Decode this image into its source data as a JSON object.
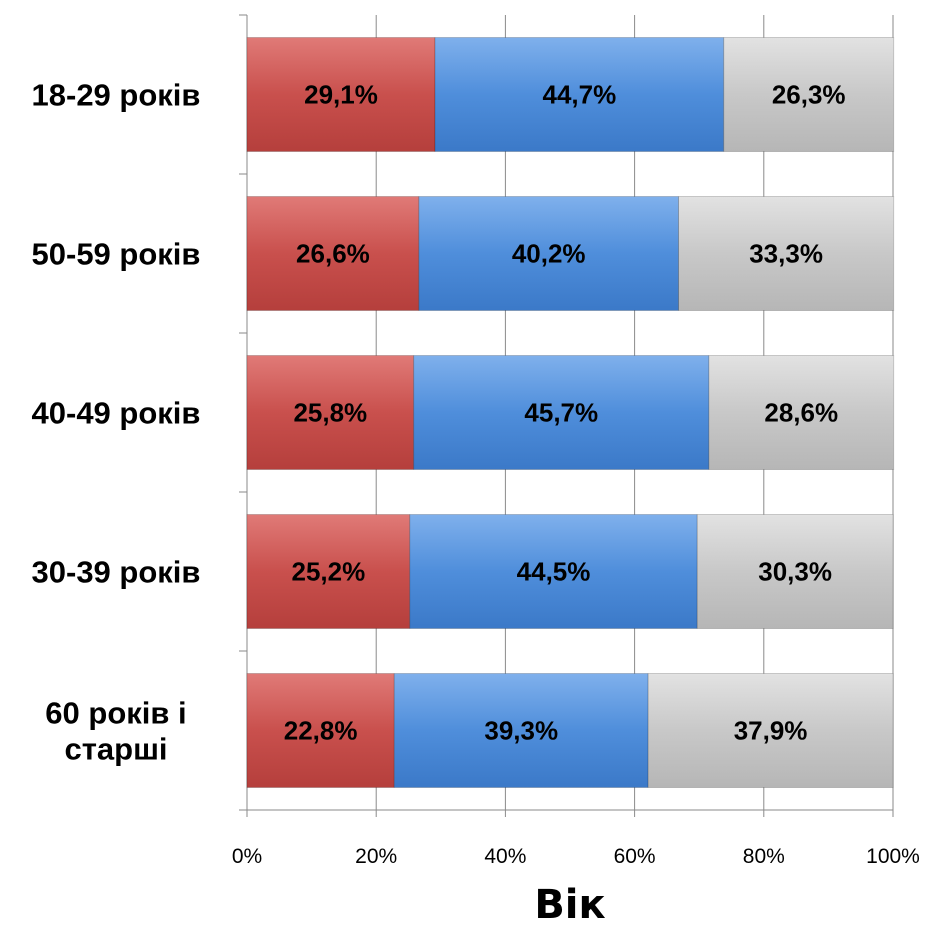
{
  "chart_data": {
    "type": "bar",
    "orientation": "horizontal",
    "stacked": true,
    "percent": true,
    "xlabel": "Вік",
    "ylabel": "",
    "xlim": [
      0,
      100
    ],
    "x_ticks": [
      "0%",
      "20%",
      "40%",
      "60%",
      "80%",
      "100%"
    ],
    "grid": "vertical",
    "legend": "none",
    "categories": [
      "18-29 років",
      "50-59 років",
      "40-49 років",
      "30-39 років",
      "60 років і старші"
    ],
    "series": [
      {
        "color": "#c9504d",
        "values": [
          29.1,
          26.6,
          25.8,
          25.2,
          22.8
        ],
        "labels": [
          "29,1%",
          "26,6%",
          "25,8%",
          "25,2%",
          "22,8%"
        ]
      },
      {
        "color": "#4f8edb",
        "values": [
          44.7,
          40.2,
          45.7,
          44.5,
          39.3
        ],
        "labels": [
          "44,7%",
          "40,2%",
          "45,7%",
          "44,5%",
          "39,3%"
        ]
      },
      {
        "color": "#c8c8c8",
        "values": [
          26.3,
          33.3,
          28.6,
          30.3,
          37.9
        ],
        "labels": [
          "26,3%",
          "33,3%",
          "28,6%",
          "30,3%",
          "37,9%"
        ]
      }
    ]
  }
}
